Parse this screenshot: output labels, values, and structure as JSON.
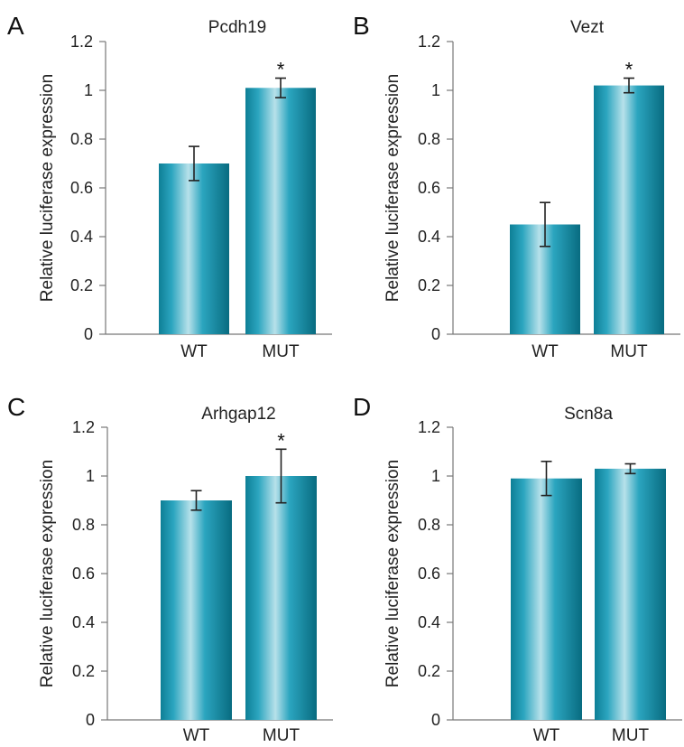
{
  "colors": {
    "bar_edge": "#0e7f96",
    "bar_mid": "#2ba5bf",
    "bar_highlight": "#b7e1ea",
    "bar_dark": "#086b80",
    "axis": "#777777",
    "text": "#222222"
  },
  "chart_data": [
    {
      "type": "bar",
      "panel_label": "A",
      "title": "Pcdh19",
      "ylabel": "Relative luciferase expression",
      "xlabel": "",
      "ylim": [
        0,
        1.2
      ],
      "yticks": [
        "0",
        "0.2",
        "0.4",
        "0.6",
        "0.8",
        "1",
        "1.2"
      ],
      "categories": [
        "WT",
        "MUT"
      ],
      "values": [
        0.7,
        1.01
      ],
      "error": [
        0.07,
        0.04
      ],
      "significance": [
        "",
        "*"
      ]
    },
    {
      "type": "bar",
      "panel_label": "B",
      "title": "Vezt",
      "ylabel": "Relative luciferase expression",
      "xlabel": "",
      "ylim": [
        0,
        1.2
      ],
      "yticks": [
        "0",
        "0.2",
        "0.4",
        "0.6",
        "0.8",
        "1",
        "1.2"
      ],
      "categories": [
        "WT",
        "MUT"
      ],
      "values": [
        0.45,
        1.02
      ],
      "error": [
        0.09,
        0.03
      ],
      "significance": [
        "",
        "*"
      ]
    },
    {
      "type": "bar",
      "panel_label": "C",
      "title": "Arhgap12",
      "ylabel": "Relative luciferase expression",
      "xlabel": "",
      "ylim": [
        0,
        1.2
      ],
      "yticks": [
        "0",
        "0.2",
        "0.4",
        "0.6",
        "0.8",
        "1",
        "1.2"
      ],
      "categories": [
        "WT",
        "MUT"
      ],
      "values": [
        0.9,
        1.0
      ],
      "error": [
        0.04,
        0.11
      ],
      "significance": [
        "",
        "*"
      ]
    },
    {
      "type": "bar",
      "panel_label": "D",
      "title": "Scn8a",
      "ylabel": "Relative luciferase expression",
      "xlabel": "",
      "ylim": [
        0,
        1.2
      ],
      "yticks": [
        "0",
        "0.2",
        "0.4",
        "0.6",
        "0.8",
        "1",
        "1.2"
      ],
      "categories": [
        "WT",
        "MUT"
      ],
      "values": [
        0.99,
        1.03
      ],
      "error": [
        0.07,
        0.02
      ],
      "significance": [
        "",
        ""
      ]
    }
  ]
}
